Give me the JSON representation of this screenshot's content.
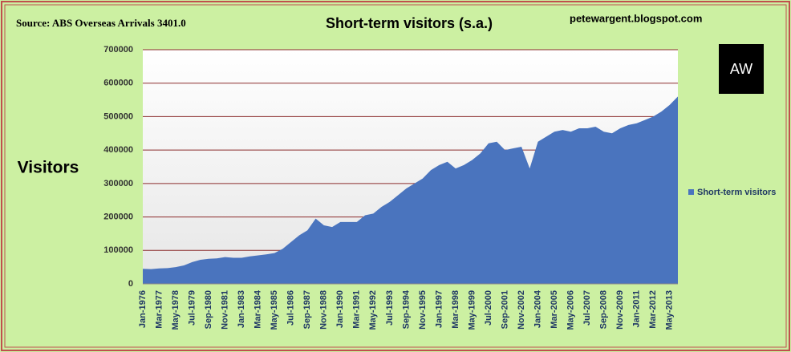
{
  "chart_data": {
    "type": "area",
    "title": "Short-term visitors (s.a.)",
    "source": "Source: ABS Overseas Arrivals 3401.0",
    "credit": "petewargent.blogspot.com",
    "logo": "AW",
    "y_label": "Visitors",
    "categories": [
      "Jan-1976",
      null,
      "Mar-1977",
      null,
      "May-1978",
      null,
      "Jul-1979",
      null,
      "Sep-1980",
      null,
      "Nov-1981",
      null,
      "Jan-1983",
      null,
      "Mar-1984",
      null,
      "May-1985",
      null,
      "Jul-1986",
      null,
      "Sep-1987",
      null,
      "Nov-1988",
      null,
      "Jan-1990",
      null,
      "Mar-1991",
      null,
      "May-1992",
      null,
      "Jul-1993",
      null,
      "Sep-1994",
      null,
      "Nov-1995",
      null,
      "Jan-1997",
      null,
      "Mar-1998",
      null,
      "May-1999",
      null,
      "Jul-2000",
      null,
      "Sep-2001",
      null,
      "Nov-2002",
      null,
      "Jan-2004",
      null,
      "Mar-2005",
      null,
      "May-2006",
      null,
      "Jul-2007",
      null,
      "Sep-2008",
      null,
      "Nov-2009",
      null,
      "Jan-2011",
      null,
      "Mar-2012",
      null,
      "May-2013",
      null
    ],
    "series": [
      {
        "name": "Short-term visitors",
        "color": "#4a74be",
        "values": [
          45000,
          44000,
          46000,
          47000,
          50000,
          55000,
          65000,
          72000,
          75000,
          76000,
          80000,
          78000,
          78000,
          82000,
          85000,
          88000,
          92000,
          105000,
          125000,
          145000,
          160000,
          195000,
          175000,
          170000,
          185000,
          185000,
          185000,
          205000,
          210000,
          230000,
          245000,
          265000,
          285000,
          300000,
          315000,
          340000,
          355000,
          365000,
          345000,
          355000,
          370000,
          390000,
          420000,
          425000,
          400000,
          405000,
          410000,
          345000,
          425000,
          440000,
          455000,
          460000,
          455000,
          465000,
          465000,
          470000,
          455000,
          450000,
          465000,
          475000,
          480000,
          490000,
          500000,
          515000,
          535000,
          560000
        ]
      }
    ],
    "ylim": [
      0,
      700000
    ],
    "yticks": [
      0,
      100000,
      200000,
      300000,
      400000,
      500000,
      600000,
      700000
    ],
    "grid": true
  }
}
